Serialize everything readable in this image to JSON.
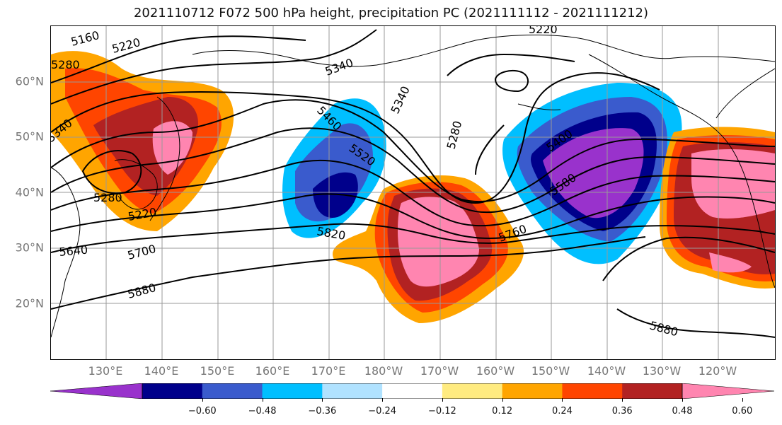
{
  "title": "2021110712 F072 500 hPa height, precipitation PC (2021111112 - 2021111212)",
  "lat_labels": [
    "60°N",
    "50°N",
    "40°N",
    "30°N",
    "20°N"
  ],
  "lon_labels": [
    "130°E",
    "140°E",
    "150°E",
    "160°E",
    "170°E",
    "180°W",
    "170°W",
    "160°W",
    "150°W",
    "140°W",
    "130°W",
    "120°W"
  ],
  "contour_labels": [
    "5160",
    "5220",
    "5280",
    "5340",
    "5340",
    "5220",
    "5460",
    "5520",
    "5280",
    "5340",
    "5400",
    "5580",
    "5280",
    "5220",
    "5640",
    "5700",
    "5820",
    "5760",
    "5880",
    "5880"
  ],
  "colorbar": {
    "ticks": [
      "−0.60",
      "−0.48",
      "−0.36",
      "−0.24",
      "−0.12",
      "0.12",
      "0.24",
      "0.36",
      "0.48",
      "0.60"
    ],
    "colors": [
      "#9932CC",
      "#00008B",
      "#3A5BCD",
      "#00BFFF",
      "#B0E2FF",
      "#FFFFFF",
      "#FFEB80",
      "#FFA500",
      "#FF4500",
      "#B22222",
      "#FF85B0"
    ]
  },
  "colors": {
    "land_outline": "#000000",
    "grid": "#999999",
    "contour": "#000000"
  }
}
